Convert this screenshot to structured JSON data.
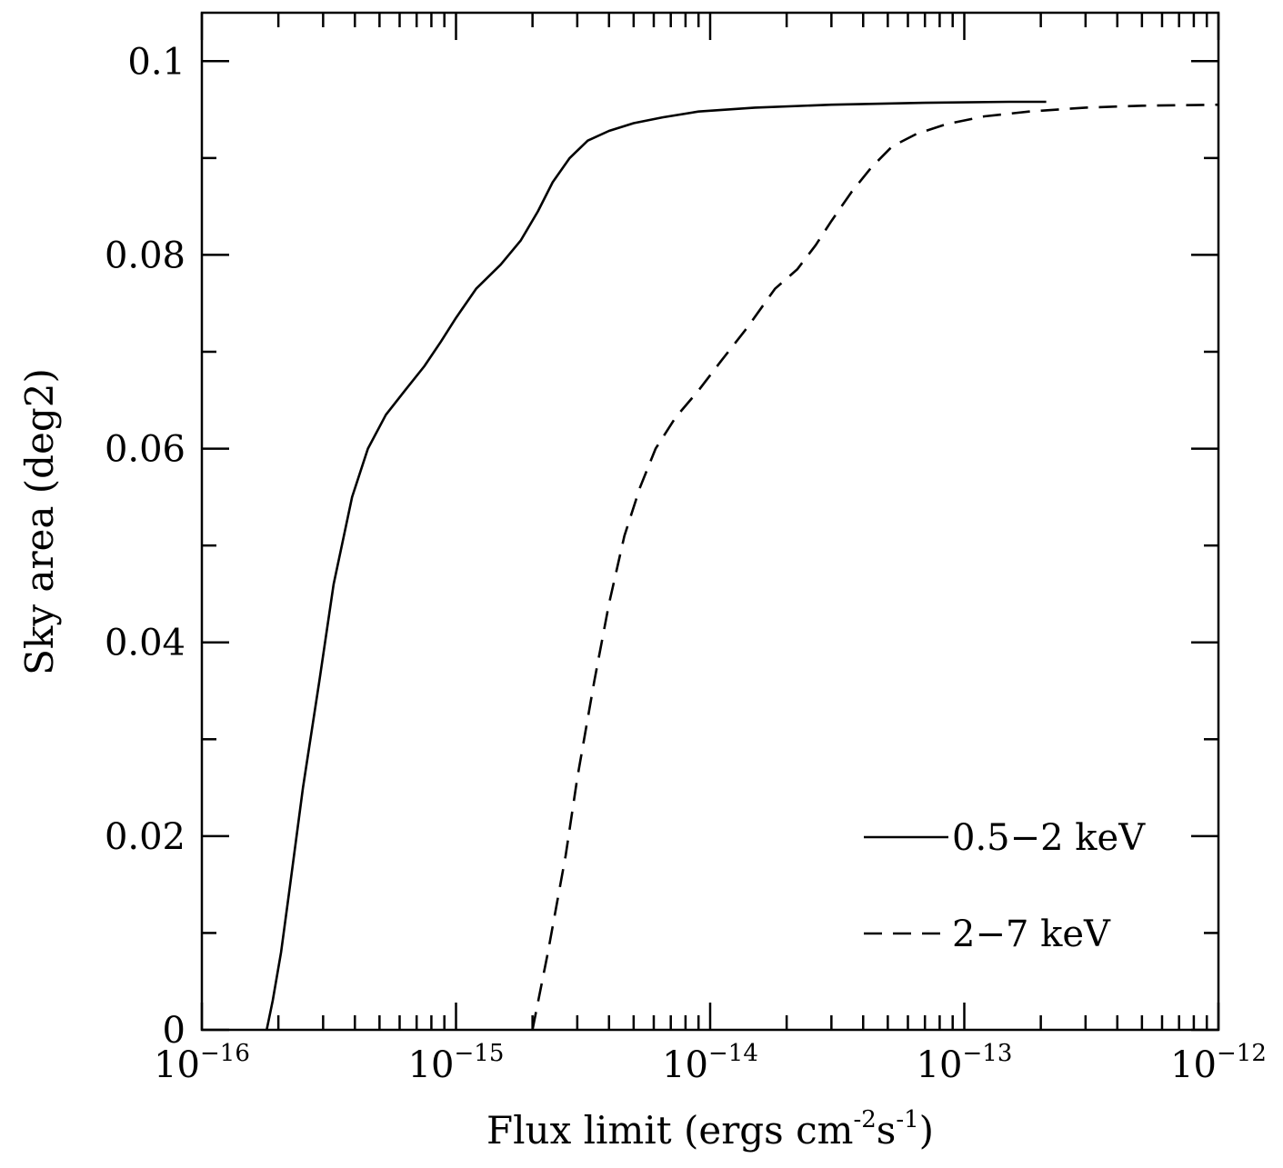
{
  "chart_data": {
    "type": "line",
    "title": "",
    "xlabel": "Flux limit (ergs cm",
    "xlabel_exp1": "-2",
    "xlabel_mid": "s",
    "xlabel_exp2": "-1",
    "xlabel_end": ")",
    "ylabel": "Sky area (deg2)",
    "x_scale": "log",
    "xlim": [
      1e-16,
      1e-12
    ],
    "ylim": [
      0,
      0.105
    ],
    "grid": false,
    "legend_position": "bottom-right",
    "x_ticks": [
      {
        "value": 1e-16,
        "base": "10",
        "exp": "−16"
      },
      {
        "value": 1e-15,
        "base": "10",
        "exp": "−15"
      },
      {
        "value": 1e-14,
        "base": "10",
        "exp": "−14"
      },
      {
        "value": 1e-13,
        "base": "10",
        "exp": "−13"
      },
      {
        "value": 1e-12,
        "base": "10",
        "exp": "−12"
      }
    ],
    "y_ticks": [
      {
        "value": 0,
        "label": "0"
      },
      {
        "value": 0.02,
        "label": "0.02"
      },
      {
        "value": 0.04,
        "label": "0.04"
      },
      {
        "value": 0.06,
        "label": "0.06"
      },
      {
        "value": 0.08,
        "label": "0.08"
      },
      {
        "value": 0.1,
        "label": "0.1"
      }
    ],
    "series": [
      {
        "name": "0.5−2 keV",
        "style": "solid",
        "points": [
          [
            1.8e-16,
            0.0
          ],
          [
            1.9e-16,
            0.003
          ],
          [
            2.05e-16,
            0.008
          ],
          [
            2.2e-16,
            0.014
          ],
          [
            2.5e-16,
            0.025
          ],
          [
            2.9e-16,
            0.036
          ],
          [
            3.3e-16,
            0.046
          ],
          [
            3.9e-16,
            0.055
          ],
          [
            4.5e-16,
            0.06
          ],
          [
            5.3e-16,
            0.0635
          ],
          [
            6.3e-16,
            0.066
          ],
          [
            7.5e-16,
            0.0685
          ],
          [
            8.7e-16,
            0.071
          ],
          [
            1e-15,
            0.0735
          ],
          [
            1.2e-15,
            0.0765
          ],
          [
            1.5e-15,
            0.079
          ],
          [
            1.8e-15,
            0.0815
          ],
          [
            2.1e-15,
            0.0845
          ],
          [
            2.4e-15,
            0.0875
          ],
          [
            2.8e-15,
            0.09
          ],
          [
            3.3e-15,
            0.0918
          ],
          [
            4e-15,
            0.0928
          ],
          [
            5e-15,
            0.0936
          ],
          [
            6.5e-15,
            0.0942
          ],
          [
            9e-15,
            0.0948
          ],
          [
            1.5e-14,
            0.0952
          ],
          [
            3e-14,
            0.0955
          ],
          [
            7e-14,
            0.0957
          ],
          [
            1.5e-13,
            0.0958
          ],
          [
            2.1e-13,
            0.0958
          ]
        ]
      },
      {
        "name": "2−7 keV",
        "style": "dashed",
        "points": [
          [
            2e-15,
            0.0
          ],
          [
            2.3e-15,
            0.008
          ],
          [
            2.7e-15,
            0.018
          ],
          [
            3e-15,
            0.026
          ],
          [
            3.5e-15,
            0.036
          ],
          [
            4e-15,
            0.044
          ],
          [
            4.6e-15,
            0.051
          ],
          [
            5.3e-15,
            0.056
          ],
          [
            6.1e-15,
            0.06
          ],
          [
            7.3e-15,
            0.0632
          ],
          [
            9e-15,
            0.066
          ],
          [
            1.1e-14,
            0.069
          ],
          [
            1.4e-14,
            0.0725
          ],
          [
            1.8e-14,
            0.0765
          ],
          [
            2.2e-14,
            0.0785
          ],
          [
            2.6e-14,
            0.081
          ],
          [
            3e-14,
            0.0835
          ],
          [
            3.6e-14,
            0.0865
          ],
          [
            4.3e-14,
            0.089
          ],
          [
            5.2e-14,
            0.0912
          ],
          [
            6.5e-14,
            0.0925
          ],
          [
            8.5e-14,
            0.0935
          ],
          [
            1.2e-13,
            0.0943
          ],
          [
            1.8e-13,
            0.0948
          ],
          [
            3e-13,
            0.0952
          ],
          [
            5e-13,
            0.0954
          ],
          [
            1e-12,
            0.0955
          ]
        ]
      }
    ]
  }
}
